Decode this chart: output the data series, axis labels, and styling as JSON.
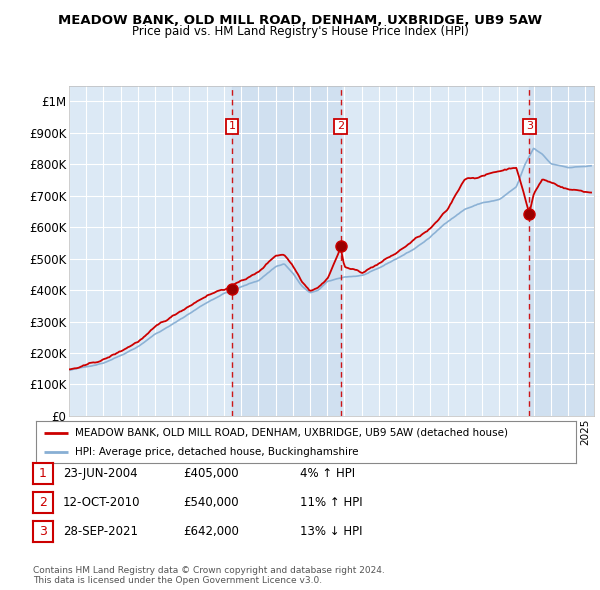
{
  "title": "MEADOW BANK, OLD MILL ROAD, DENHAM, UXBRIDGE, UB9 5AW",
  "subtitle": "Price paid vs. HM Land Registry's House Price Index (HPI)",
  "ylabel_ticks": [
    "£0",
    "£100K",
    "£200K",
    "£300K",
    "£400K",
    "£500K",
    "£600K",
    "£700K",
    "£800K",
    "£900K",
    "£1M"
  ],
  "ytick_values": [
    0,
    100000,
    200000,
    300000,
    400000,
    500000,
    600000,
    700000,
    800000,
    900000,
    1000000
  ],
  "xlim_start": 1995.0,
  "xlim_end": 2025.5,
  "ylim": [
    0,
    1050000
  ],
  "background_color": "#dce9f5",
  "grid_color": "#ffffff",
  "shade_color": "#c5d8ed",
  "sale_markers": [
    {
      "year": 2004.47,
      "price": 405000,
      "label": "1"
    },
    {
      "year": 2010.78,
      "price": 540000,
      "label": "2"
    },
    {
      "year": 2021.74,
      "price": 642000,
      "label": "3"
    }
  ],
  "legend_entries": [
    {
      "label": "MEADOW BANK, OLD MILL ROAD, DENHAM, UXBRIDGE, UB9 5AW (detached house)",
      "color": "#cc0000",
      "lw": 2
    },
    {
      "label": "HPI: Average price, detached house, Buckinghamshire",
      "color": "#88afd4",
      "lw": 2
    }
  ],
  "table_rows": [
    {
      "num": "1",
      "date": "23-JUN-2004",
      "price": "£405,000",
      "hpi": "4% ↑ HPI"
    },
    {
      "num": "2",
      "date": "12-OCT-2010",
      "price": "£540,000",
      "hpi": "11% ↑ HPI"
    },
    {
      "num": "3",
      "date": "28-SEP-2021",
      "price": "£642,000",
      "hpi": "13% ↓ HPI"
    }
  ],
  "footnote": "Contains HM Land Registry data © Crown copyright and database right 2024.\nThis data is licensed under the Open Government Licence v3.0.",
  "hpi_line_color": "#88afd4",
  "sale_line_color": "#cc0000",
  "dashed_line_color": "#cc0000"
}
